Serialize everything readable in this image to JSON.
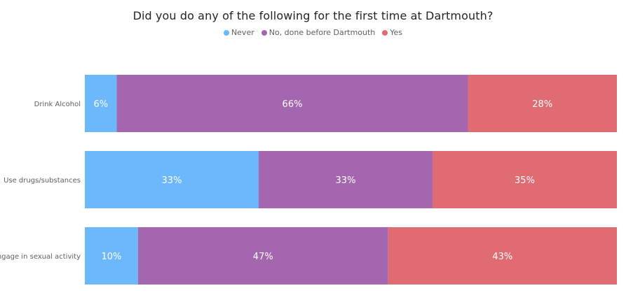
{
  "chart_data": {
    "type": "bar",
    "orientation": "horizontal",
    "stacked": "100%",
    "title": "Did you do any of the following for the first time at Dartmouth?",
    "categories": [
      "Drink Alcohol",
      "Use drugs/substances",
      "Engage in sexual activity"
    ],
    "series": [
      {
        "name": "Never",
        "color": "#6cb8fb",
        "values": [
          6,
          33,
          10
        ],
        "labels": [
          "6%",
          "33%",
          "10%"
        ]
      },
      {
        "name": "No, done before Dartmouth",
        "color": "#a566b0",
        "values": [
          66,
          33,
          47
        ],
        "labels": [
          "66%",
          "33%",
          "47%"
        ]
      },
      {
        "name": "Yes",
        "color": "#e06b72",
        "values": [
          28,
          35,
          43
        ],
        "labels": [
          "28%",
          "35%",
          "43%"
        ]
      }
    ],
    "legend_position": "top-center",
    "grid": false
  }
}
